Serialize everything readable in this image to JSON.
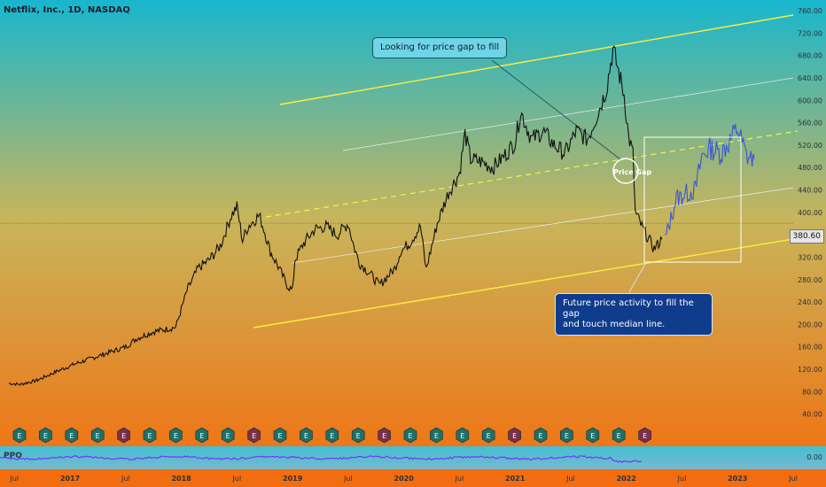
{
  "title": "Netflix, Inc., 1D, NASDAQ",
  "callouts": {
    "top": "Looking for price gap to fill",
    "gap": "Price Gap",
    "bottom_line1": "Future price activity to fill the gap",
    "bottom_line2": "and touch median line."
  },
  "indicator_label": "PPO",
  "current_price_label": "380.60",
  "colors": {
    "channel": "#ffef3c",
    "median_dash": "#f5f34f",
    "inner_lines": "#ebeff4",
    "price": "#111111",
    "projection": "#3a56d8",
    "ppo_line": "#6a38ff",
    "bg_top": "#18b6cf",
    "bg_mid": "#c8b55b",
    "bg_bottom": "#f56b0b"
  },
  "chart_data": {
    "type": "line",
    "title": "Netflix, Inc., 1D, NASDAQ",
    "xlabel": "",
    "ylabel": "",
    "ylim": [
      0,
      760
    ],
    "y_ticks": [
      40,
      80,
      120,
      160,
      200,
      240,
      280,
      320,
      360,
      400,
      440,
      480,
      520,
      560,
      600,
      640,
      680,
      720,
      760
    ],
    "x_labels": [
      {
        "label": "Jul",
        "t": 2016.5
      },
      {
        "label": "2017",
        "t": 2017
      },
      {
        "label": "Jul",
        "t": 2017.5
      },
      {
        "label": "2018",
        "t": 2018
      },
      {
        "label": "Jul",
        "t": 2018.5
      },
      {
        "label": "2019",
        "t": 2019
      },
      {
        "label": "Jul",
        "t": 2019.5
      },
      {
        "label": "2020",
        "t": 2020
      },
      {
        "label": "Jul",
        "t": 2020.5
      },
      {
        "label": "2021",
        "t": 2021
      },
      {
        "label": "Jul",
        "t": 2021.5
      },
      {
        "label": "2022",
        "t": 2022
      },
      {
        "label": "Jul",
        "t": 2022.5
      },
      {
        "label": "2023",
        "t": 2023
      },
      {
        "label": "Jul",
        "t": 2023.5
      }
    ],
    "series": [
      {
        "values": [
          [
            2016.45,
            95
          ],
          [
            2016.55,
            93
          ],
          [
            2016.7,
            100
          ],
          [
            2016.9,
            118
          ],
          [
            2017.05,
            130
          ],
          [
            2017.2,
            140
          ],
          [
            2017.35,
            150
          ],
          [
            2017.5,
            160
          ],
          [
            2017.6,
            175
          ],
          [
            2017.75,
            187
          ],
          [
            2017.95,
            195
          ],
          [
            2018.05,
            260
          ],
          [
            2018.15,
            300
          ],
          [
            2018.25,
            315
          ],
          [
            2018.35,
            340
          ],
          [
            2018.45,
            395
          ],
          [
            2018.5,
            410
          ],
          [
            2018.55,
            350
          ],
          [
            2018.6,
            375
          ],
          [
            2018.7,
            395
          ],
          [
            2018.75,
            365
          ],
          [
            2018.8,
            330
          ],
          [
            2018.88,
            300
          ],
          [
            2018.95,
            270
          ],
          [
            2019.0,
            260
          ],
          [
            2019.02,
            315
          ],
          [
            2019.1,
            345
          ],
          [
            2019.2,
            370
          ],
          [
            2019.3,
            375
          ],
          [
            2019.4,
            360
          ],
          [
            2019.5,
            380
          ],
          [
            2019.55,
            340
          ],
          [
            2019.6,
            310
          ],
          [
            2019.7,
            290
          ],
          [
            2019.78,
            270
          ],
          [
            2019.85,
            285
          ],
          [
            2019.92,
            300
          ],
          [
            2019.97,
            330
          ],
          [
            2020.05,
            345
          ],
          [
            2020.15,
            375
          ],
          [
            2020.2,
            298
          ],
          [
            2020.3,
            380
          ],
          [
            2020.4,
            435
          ],
          [
            2020.5,
            470
          ],
          [
            2020.55,
            540
          ],
          [
            2020.6,
            495
          ],
          [
            2020.7,
            490
          ],
          [
            2020.8,
            480
          ],
          [
            2020.9,
            500
          ],
          [
            2021.0,
            525
          ],
          [
            2021.05,
            580
          ],
          [
            2021.15,
            530
          ],
          [
            2021.25,
            545
          ],
          [
            2021.35,
            520
          ],
          [
            2021.45,
            505
          ],
          [
            2021.55,
            545
          ],
          [
            2021.65,
            530
          ],
          [
            2021.75,
            580
          ],
          [
            2021.82,
            620
          ],
          [
            2021.88,
            690
          ],
          [
            2021.92,
            660
          ],
          [
            2021.98,
            610
          ],
          [
            2022.02,
            535
          ],
          [
            2022.06,
            505
          ],
          [
            2022.08,
            400
          ],
          [
            2022.15,
            370
          ],
          [
            2022.25,
            335
          ],
          [
            2022.32,
            352
          ]
        ]
      },
      {
        "values": [
          [
            2022.35,
            352
          ],
          [
            2022.45,
            425
          ],
          [
            2022.55,
            435
          ],
          [
            2022.62,
            440
          ],
          [
            2022.68,
            500
          ],
          [
            2022.75,
            515
          ],
          [
            2022.85,
            505
          ],
          [
            2022.92,
            525
          ],
          [
            2023.0,
            550
          ],
          [
            2023.08,
            500
          ],
          [
            2023.15,
            495
          ]
        ]
      }
    ],
    "indicator": {
      "name": "PPO",
      "zero_label": "0.00",
      "tick_label": "40.00"
    }
  }
}
